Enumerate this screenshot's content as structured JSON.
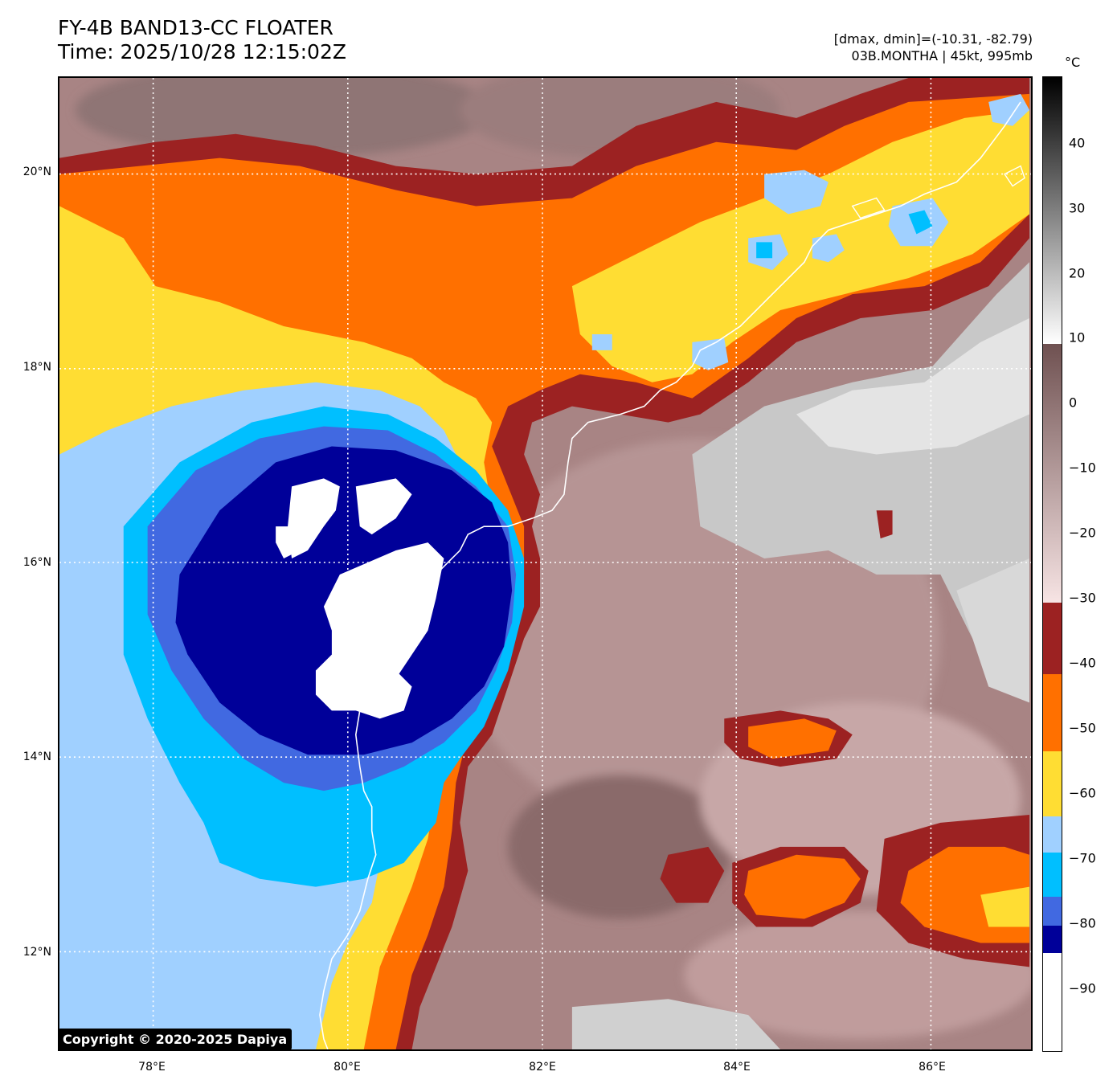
{
  "header": {
    "title_line1": "FY-4B BAND13-CC FLOATER",
    "title_line2": "Time: 2025/10/28 12:15:02Z",
    "info_line1": "[dmax, dmin]=(-10.31, -82.79)",
    "info_line2": "03B.MONTHA | 45kt, 995mb"
  },
  "map": {
    "lat_labels": [
      "20°N",
      "18°N",
      "16°N",
      "14°N",
      "12°N"
    ],
    "lon_labels": [
      "78°E",
      "80°E",
      "82°E",
      "84°E",
      "86°E"
    ],
    "coastline_color": "#ffffff",
    "gridline_color": "#ffffff"
  },
  "colorbar": {
    "unit": "°C",
    "labels": [
      "40",
      "30",
      "20",
      "10",
      "0",
      "−10",
      "−20",
      "−30",
      "−40",
      "−50",
      "−60",
      "−70",
      "−80",
      "−90"
    ],
    "color_scale": {
      "below_-85": "#ffffff",
      "-85_to_-80": "#000099",
      "-80_to_-75": "#4169e1",
      "-75_to_-70": "#00bfff",
      "-70_to_-65": "#a0d0ff",
      "-65_to_-55": "#ffdd33",
      "-55_to_-45": "#ff7000",
      "-45_to_-35": "#9c2222",
      "-35_to_10": "brown-pink gradient",
      "above_10": "gray-black gradient"
    }
  },
  "copyright": "Copyright © 2020-2025 Dapiya"
}
